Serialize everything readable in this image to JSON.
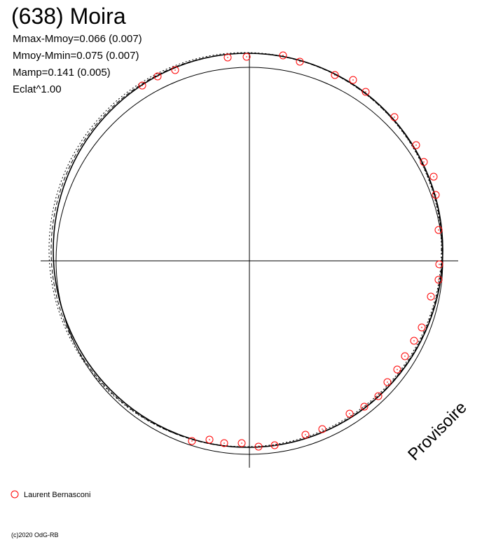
{
  "chart_data": {
    "type": "scatter",
    "title": "(638) Moira",
    "stats": [
      "Mmax-Mmoy=0.066 (0.007)",
      "Mmoy-Mmin=0.075 (0.007)",
      "Mamp=0.141 (0.005)",
      "Eclat^1.00"
    ],
    "watermark": "Provisoire",
    "credit": "(c)2020 OdG-RB",
    "xlim": [
      -298,
      298
    ],
    "ylim": [
      -295,
      297
    ],
    "reference_radius": 276,
    "curves": [
      {
        "cx": -2,
        "cy": 15,
        "rx": 278,
        "ry": 281
      },
      {
        "cx": -4,
        "cy": 15,
        "rx": 279,
        "ry": 281
      },
      {
        "cx": -6,
        "cy": 16,
        "rx": 280,
        "ry": 281
      }
    ],
    "series": [
      {
        "name": "Laurent Bernasconi",
        "color": "#ff0000",
        "x": [
          -31,
          -4,
          48,
          72,
          122,
          148,
          166,
          207,
          238,
          249,
          263,
          266,
          270,
          271,
          270,
          259,
          246,
          235,
          222,
          211,
          197,
          184,
          164,
          143,
          104,
          80,
          36,
          13,
          -11,
          -36,
          -57,
          -82,
          -153,
          -131,
          -106
        ],
        "values": [
          290,
          291,
          293,
          284,
          265,
          258,
          241,
          205,
          165,
          141,
          120,
          94,
          44,
          -5,
          -27,
          -51,
          -95,
          -114,
          -136,
          -155,
          -173,
          -193,
          -208,
          -218,
          -240,
          -248,
          -263,
          -265,
          -260,
          -260,
          -255,
          -257,
          250,
          263,
          272
        ]
      }
    ]
  }
}
